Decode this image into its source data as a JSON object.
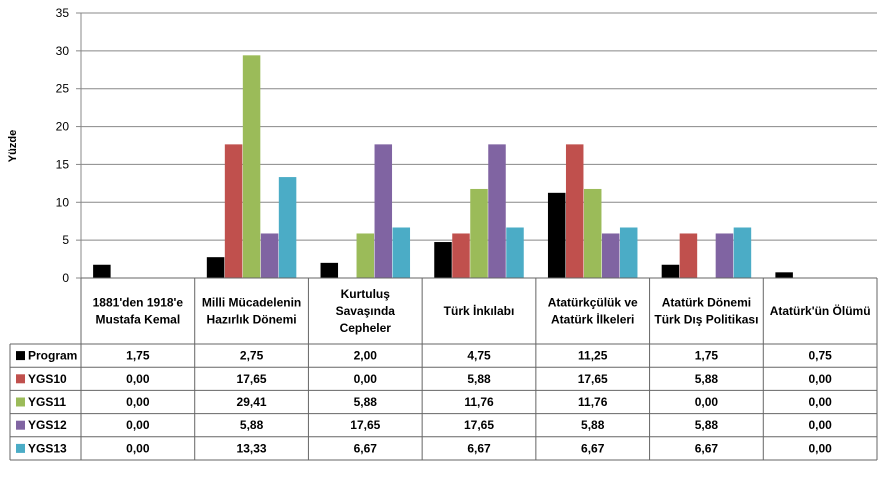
{
  "chart_data": {
    "type": "bar",
    "ylabel": "Yüzde",
    "ylim": [
      0,
      35
    ],
    "yticks": [
      0,
      5,
      10,
      15,
      20,
      25,
      30,
      35
    ],
    "grid": true,
    "legend": "data table, left",
    "categories": [
      [
        "1881'den 1918'e",
        "Mustafa Kemal"
      ],
      [
        "Milli Mücadelenin",
        "Hazırlık Dönemi"
      ],
      [
        "Kurtuluş",
        "Savaşında",
        "Cepheler"
      ],
      [
        "Türk İnkılabı"
      ],
      [
        "Atatürkçülük ve",
        "Atatürk İlkeleri"
      ],
      [
        "Atatürk Dönemi",
        "Türk Dış Politikası"
      ],
      [
        "Atatürk'ün Ölümü"
      ]
    ],
    "series": [
      {
        "name": "Program",
        "color": "#000000",
        "values": [
          1.75,
          2.75,
          2.0,
          4.75,
          11.25,
          1.75,
          0.75
        ],
        "labels": [
          "1,75",
          "2,75",
          "2,00",
          "4,75",
          "11,25",
          "1,75",
          "0,75"
        ]
      },
      {
        "name": "YGS10",
        "color": "#C0504D",
        "values": [
          0.0,
          17.65,
          0.0,
          5.88,
          17.65,
          5.88,
          0.0
        ],
        "labels": [
          "0,00",
          "17,65",
          "0,00",
          "5,88",
          "17,65",
          "5,88",
          "0,00"
        ]
      },
      {
        "name": "YGS11",
        "color": "#9BBB59",
        "values": [
          0.0,
          29.41,
          5.88,
          11.76,
          11.76,
          0.0,
          0.0
        ],
        "labels": [
          "0,00",
          "29,41",
          "5,88",
          "11,76",
          "11,76",
          "0,00",
          "0,00"
        ]
      },
      {
        "name": "YGS12",
        "color": "#8064A2",
        "values": [
          0.0,
          5.88,
          17.65,
          17.65,
          5.88,
          5.88,
          0.0
        ],
        "labels": [
          "0,00",
          "5,88",
          "17,65",
          "17,65",
          "5,88",
          "5,88",
          "0,00"
        ]
      },
      {
        "name": "YGS13",
        "color": "#4BACC6",
        "values": [
          0.0,
          13.33,
          6.67,
          6.67,
          6.67,
          6.67,
          0.0
        ],
        "labels": [
          "0,00",
          "13,33",
          "6,67",
          "6,67",
          "6,67",
          "6,67",
          "0,00"
        ]
      }
    ]
  }
}
